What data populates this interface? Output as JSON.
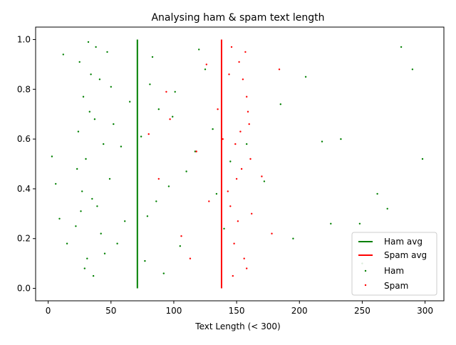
{
  "chart_data": {
    "type": "scatter",
    "title": "Analysing ham & spam text length",
    "xlabel": "Text Length (< 300)",
    "ylabel": "",
    "xlim": [
      -10,
      315
    ],
    "ylim": [
      -0.05,
      1.05
    ],
    "x_ticks": [
      0,
      50,
      100,
      150,
      200,
      250,
      300
    ],
    "y_ticks": [
      0.0,
      0.2,
      0.4,
      0.6,
      0.8,
      1.0
    ],
    "x_tick_labels": [
      "0",
      "50",
      "100",
      "150",
      "200",
      "250",
      "300"
    ],
    "y_tick_labels": [
      "0.0",
      "0.2",
      "0.4",
      "0.6",
      "0.8",
      "1.0"
    ],
    "grid": false,
    "legend_position": "bottom-right",
    "legend": [
      {
        "label": "Ham avg",
        "kind": "line",
        "color": "#008000"
      },
      {
        "label": "Spam avg",
        "kind": "line",
        "color": "#ff0000"
      },
      {
        "label": "Ham",
        "kind": "marker",
        "color": "#008000"
      },
      {
        "label": "Spam",
        "kind": "marker",
        "color": "#ff0000"
      }
    ],
    "averages": [
      {
        "name": "Ham avg",
        "x": 71,
        "color": "#008000"
      },
      {
        "name": "Spam avg",
        "x": 138,
        "color": "#ff0000"
      }
    ],
    "series": [
      {
        "name": "Ham",
        "color": "#008000",
        "points": [
          [
            25,
            0.91
          ],
          [
            31,
            0.12
          ],
          [
            44,
            0.58
          ],
          [
            28,
            0.77
          ],
          [
            39,
            0.33
          ],
          [
            52,
            0.66
          ],
          [
            23,
            0.48
          ],
          [
            36,
            0.05
          ],
          [
            47,
            0.95
          ],
          [
            61,
            0.27
          ],
          [
            33,
            0.71
          ],
          [
            27,
            0.39
          ],
          [
            41,
            0.84
          ],
          [
            55,
            0.18
          ],
          [
            30,
            0.52
          ],
          [
            24,
            0.63
          ],
          [
            38,
            0.97
          ],
          [
            49,
            0.44
          ],
          [
            29,
            0.08
          ],
          [
            34,
            0.86
          ],
          [
            65,
            0.75
          ],
          [
            42,
            0.22
          ],
          [
            26,
            0.31
          ],
          [
            58,
            0.57
          ],
          [
            32,
            0.99
          ],
          [
            45,
            0.14
          ],
          [
            37,
            0.68
          ],
          [
            22,
            0.25
          ],
          [
            50,
            0.81
          ],
          [
            35,
            0.36
          ],
          [
            74,
            0.61
          ],
          [
            83,
            0.93
          ],
          [
            96,
            0.41
          ],
          [
            105,
            0.17
          ],
          [
            88,
            0.72
          ],
          [
            117,
            0.55
          ],
          [
            79,
            0.29
          ],
          [
            125,
            0.88
          ],
          [
            92,
            0.06
          ],
          [
            110,
            0.47
          ],
          [
            131,
            0.64
          ],
          [
            86,
            0.35
          ],
          [
            101,
            0.79
          ],
          [
            140,
            0.24
          ],
          [
            120,
            0.96
          ],
          [
            77,
            0.11
          ],
          [
            145,
            0.51
          ],
          [
            99,
            0.69
          ],
          [
            134,
            0.38
          ],
          [
            81,
            0.82
          ],
          [
            158,
            0.58
          ],
          [
            172,
            0.43
          ],
          [
            185,
            0.74
          ],
          [
            205,
            0.85
          ],
          [
            218,
            0.59
          ],
          [
            233,
            0.6
          ],
          [
            248,
            0.26
          ],
          [
            262,
            0.38
          ],
          [
            281,
            0.97
          ],
          [
            298,
            0.52
          ],
          [
            12,
            0.94
          ],
          [
            6,
            0.42
          ],
          [
            3,
            0.53
          ],
          [
            15,
            0.18
          ],
          [
            9,
            0.28
          ],
          [
            195,
            0.2
          ],
          [
            225,
            0.26
          ],
          [
            250,
            0.1
          ],
          [
            270,
            0.32
          ],
          [
            290,
            0.88
          ]
        ]
      },
      {
        "name": "Spam",
        "color": "#ff0000",
        "points": [
          [
            152,
            0.91
          ],
          [
            156,
            0.12
          ],
          [
            149,
            0.58
          ],
          [
            158,
            0.77
          ],
          [
            145,
            0.33
          ],
          [
            160,
            0.66
          ],
          [
            154,
            0.48
          ],
          [
            147,
            0.05
          ],
          [
            157,
            0.95
          ],
          [
            151,
            0.27
          ],
          [
            159,
            0.71
          ],
          [
            143,
            0.39
          ],
          [
            155,
            0.84
          ],
          [
            148,
            0.18
          ],
          [
            161,
            0.52
          ],
          [
            153,
            0.63
          ],
          [
            146,
            0.97
          ],
          [
            150,
            0.44
          ],
          [
            158,
            0.08
          ],
          [
            144,
            0.86
          ],
          [
            135,
            0.72
          ],
          [
            128,
            0.35
          ],
          [
            118,
            0.55
          ],
          [
            106,
            0.21
          ],
          [
            97,
            0.68
          ],
          [
            88,
            0.44
          ],
          [
            126,
            0.9
          ],
          [
            113,
            0.12
          ],
          [
            139,
            0.6
          ],
          [
            170,
            0.45
          ],
          [
            178,
            0.22
          ],
          [
            184,
            0.88
          ],
          [
            162,
            0.3
          ],
          [
            94,
            0.79
          ],
          [
            80,
            0.62
          ]
        ]
      }
    ]
  }
}
